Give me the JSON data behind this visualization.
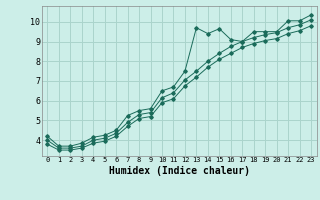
{
  "xlabel": "Humidex (Indice chaleur)",
  "bg_color": "#cceee8",
  "grid_color": "#aad4cc",
  "line_color": "#1a6b5a",
  "xlim": [
    -0.5,
    23.5
  ],
  "ylim": [
    3.2,
    10.8
  ],
  "xticks": [
    0,
    1,
    2,
    3,
    4,
    5,
    6,
    7,
    8,
    9,
    10,
    11,
    12,
    13,
    14,
    15,
    16,
    17,
    18,
    19,
    20,
    21,
    22,
    23
  ],
  "yticks": [
    4,
    5,
    6,
    7,
    8,
    9,
    10
  ],
  "line1_x": [
    0,
    1,
    2,
    3,
    4,
    5,
    6,
    7,
    8,
    9,
    10,
    11,
    12,
    13,
    14,
    15,
    16,
    17,
    18,
    19,
    20,
    21,
    22,
    23
  ],
  "line1_y": [
    4.2,
    3.7,
    3.7,
    3.85,
    4.15,
    4.25,
    4.5,
    5.25,
    5.5,
    5.6,
    6.5,
    6.7,
    7.5,
    9.7,
    9.4,
    9.65,
    9.1,
    9.0,
    9.5,
    9.5,
    9.5,
    10.05,
    10.05,
    10.35
  ],
  "line2_x": [
    0,
    1,
    2,
    3,
    4,
    5,
    6,
    7,
    8,
    9,
    10,
    11,
    12,
    13,
    14,
    15,
    16,
    17,
    18,
    19,
    20,
    21,
    22,
    23
  ],
  "line2_y": [
    4.0,
    3.6,
    3.6,
    3.7,
    4.0,
    4.1,
    4.35,
    4.9,
    5.3,
    5.4,
    6.15,
    6.4,
    7.05,
    7.5,
    8.0,
    8.4,
    8.75,
    9.0,
    9.2,
    9.35,
    9.45,
    9.7,
    9.85,
    10.1
  ],
  "line3_x": [
    0,
    1,
    2,
    3,
    4,
    5,
    6,
    7,
    8,
    9,
    10,
    11,
    12,
    13,
    14,
    15,
    16,
    17,
    18,
    19,
    20,
    21,
    22,
    23
  ],
  "line3_y": [
    3.8,
    3.5,
    3.5,
    3.6,
    3.85,
    3.95,
    4.2,
    4.7,
    5.1,
    5.2,
    5.9,
    6.1,
    6.75,
    7.2,
    7.7,
    8.1,
    8.4,
    8.7,
    8.9,
    9.05,
    9.15,
    9.4,
    9.55,
    9.8
  ]
}
